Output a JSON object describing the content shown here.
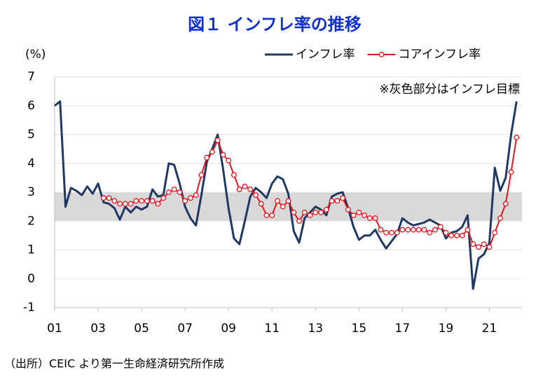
{
  "chart_data": {
    "type": "line",
    "title": "図１ インフレ率の推移",
    "y_unit_label": "(%)",
    "annotation": "※灰色部分はインフレ目標",
    "source": "（出所）CEIC より第一生命経済研究所作成",
    "target_band": [
      2,
      3
    ],
    "band_color": "#d9d9d9",
    "grid": true,
    "legend": "top-right",
    "x": [
      2001,
      2001.25,
      2001.5,
      2001.75,
      2002,
      2002.25,
      2002.5,
      2002.75,
      2003,
      2003.25,
      2003.5,
      2003.75,
      2004,
      2004.25,
      2004.5,
      2004.75,
      2005,
      2005.25,
      2005.5,
      2005.75,
      2006,
      2006.25,
      2006.5,
      2006.75,
      2007,
      2007.25,
      2007.5,
      2007.75,
      2008,
      2008.25,
      2008.5,
      2008.75,
      2009,
      2009.25,
      2009.5,
      2009.75,
      2010,
      2010.25,
      2010.5,
      2010.75,
      2011,
      2011.25,
      2011.5,
      2011.75,
      2012,
      2012.25,
      2012.5,
      2012.75,
      2013,
      2013.25,
      2013.5,
      2013.75,
      2014,
      2014.25,
      2014.5,
      2014.75,
      2015,
      2015.25,
      2015.5,
      2015.75,
      2016,
      2016.25,
      2016.5,
      2016.75,
      2017,
      2017.25,
      2017.5,
      2017.75,
      2018,
      2018.25,
      2018.5,
      2018.75,
      2019,
      2019.25,
      2019.5,
      2019.75,
      2020,
      2020.25,
      2020.5,
      2020.75,
      2021,
      2021.25,
      2021.5,
      2021.75,
      2022,
      2022.25
    ],
    "series": [
      {
        "name": "インフレ率",
        "color": "#1f3864",
        "markers": false,
        "values": [
          6.0,
          6.15,
          2.5,
          3.15,
          3.05,
          2.9,
          3.2,
          2.95,
          3.3,
          2.65,
          2.6,
          2.45,
          2.05,
          2.5,
          2.3,
          2.5,
          2.4,
          2.5,
          3.1,
          2.85,
          2.9,
          4.0,
          3.95,
          3.3,
          2.5,
          2.1,
          1.85,
          2.9,
          4.05,
          4.5,
          5.0,
          3.8,
          2.45,
          1.4,
          1.2,
          2.0,
          2.85,
          3.15,
          3.0,
          2.8,
          3.3,
          3.55,
          3.45,
          2.95,
          1.65,
          1.25,
          2.1,
          2.3,
          2.5,
          2.4,
          2.2,
          2.85,
          2.95,
          3.0,
          2.45,
          1.8,
          1.35,
          1.5,
          1.5,
          1.7,
          1.35,
          1.05,
          1.3,
          1.55,
          2.1,
          1.95,
          1.85,
          1.9,
          1.95,
          2.05,
          1.95,
          1.85,
          1.4,
          1.6,
          1.65,
          1.8,
          2.2,
          -0.35,
          0.7,
          0.85,
          1.25,
          3.85,
          3.05,
          3.5,
          5.0,
          6.15
        ]
      },
      {
        "name": "コアインフレ率",
        "color": "#e8141c",
        "markers": true,
        "values": [
          null,
          null,
          null,
          null,
          null,
          null,
          null,
          null,
          null,
          2.8,
          2.8,
          2.7,
          2.6,
          2.6,
          2.6,
          2.7,
          2.7,
          2.7,
          2.7,
          2.6,
          2.8,
          3.0,
          3.1,
          3.0,
          2.7,
          2.8,
          2.9,
          3.6,
          4.2,
          4.4,
          4.8,
          4.3,
          4.1,
          3.6,
          3.1,
          3.2,
          3.1,
          2.9,
          2.6,
          2.2,
          2.2,
          2.7,
          2.5,
          2.7,
          2.3,
          2.0,
          2.3,
          2.2,
          2.3,
          2.3,
          2.4,
          2.7,
          2.7,
          2.8,
          2.4,
          2.2,
          2.3,
          2.2,
          2.1,
          2.1,
          1.7,
          1.6,
          1.6,
          1.6,
          1.7,
          1.7,
          1.7,
          1.7,
          1.7,
          1.6,
          1.7,
          1.8,
          1.6,
          1.5,
          1.5,
          1.5,
          1.7,
          1.2,
          1.1,
          1.2,
          1.1,
          1.6,
          2.1,
          2.6,
          3.7,
          4.9
        ]
      }
    ],
    "xlim": [
      2001,
      2022.5
    ],
    "xticks": [
      {
        "value": 2001,
        "label": "01"
      },
      {
        "value": 2003,
        "label": "03"
      },
      {
        "value": 2005,
        "label": "05"
      },
      {
        "value": 2007,
        "label": "07"
      },
      {
        "value": 2009,
        "label": "09"
      },
      {
        "value": 2011,
        "label": "11"
      },
      {
        "value": 2013,
        "label": "13"
      },
      {
        "value": 2015,
        "label": "15"
      },
      {
        "value": 2017,
        "label": "17"
      },
      {
        "value": 2019,
        "label": "19"
      },
      {
        "value": 2021,
        "label": "21"
      }
    ],
    "ylim": [
      -1,
      7
    ],
    "yticks": [
      -1,
      0,
      1,
      2,
      3,
      4,
      5,
      6,
      7
    ]
  }
}
